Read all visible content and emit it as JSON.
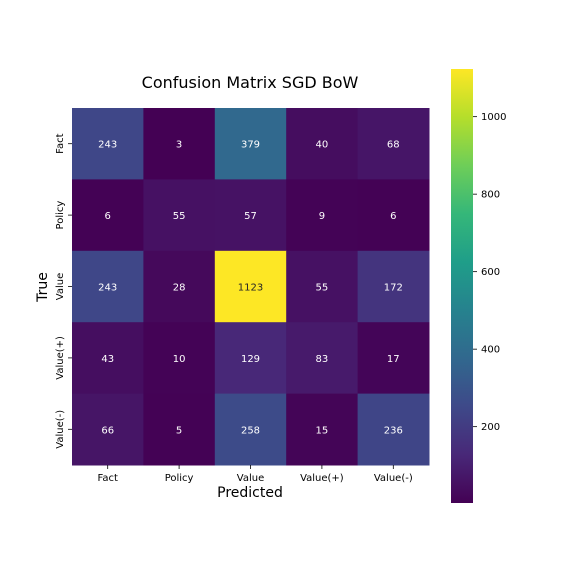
{
  "chart_data": {
    "type": "heatmap",
    "title": "Confusion Matrix SGD BoW",
    "xlabel": "Predicted",
    "ylabel": "True",
    "x_categories": [
      "Fact",
      "Policy",
      "Value",
      "Value(+)",
      "Value(-)"
    ],
    "y_categories": [
      "Fact",
      "Policy",
      "Value",
      "Value(+)",
      "Value(-)"
    ],
    "values": [
      [
        243,
        3,
        379,
        40,
        68
      ],
      [
        6,
        55,
        57,
        9,
        6
      ],
      [
        243,
        28,
        1123,
        55,
        172
      ],
      [
        43,
        10,
        129,
        83,
        17
      ],
      [
        66,
        5,
        258,
        15,
        236
      ]
    ],
    "colormap": "viridis",
    "color_range": [
      3,
      1123
    ],
    "colorbar_ticks": [
      200,
      400,
      600,
      800,
      1000
    ]
  }
}
